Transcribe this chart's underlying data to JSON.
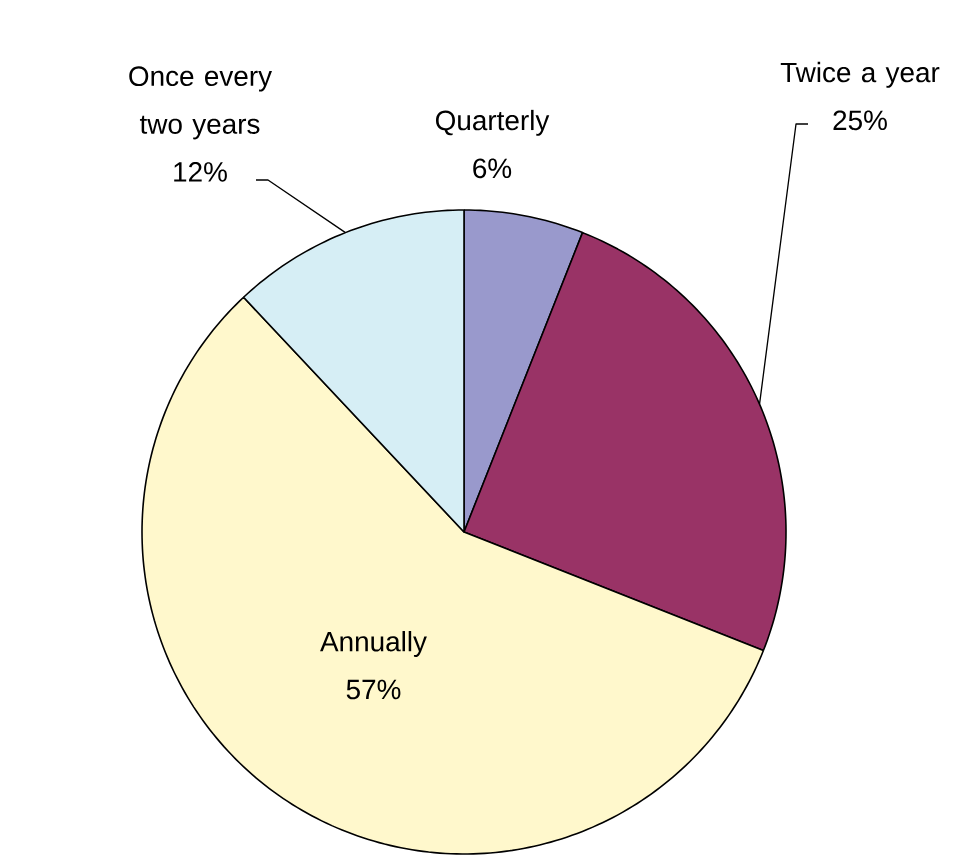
{
  "chart_data": {
    "type": "pie",
    "categories": [
      "Quarterly",
      "Twice a year",
      "Annually",
      "Once every two years"
    ],
    "values": [
      6,
      25,
      57,
      12
    ],
    "value_labels": [
      "6%",
      "25%",
      "57%",
      "12%"
    ],
    "colors": [
      "#9999cc",
      "#993366",
      "#fff8cc",
      "#d6eef5"
    ]
  }
}
